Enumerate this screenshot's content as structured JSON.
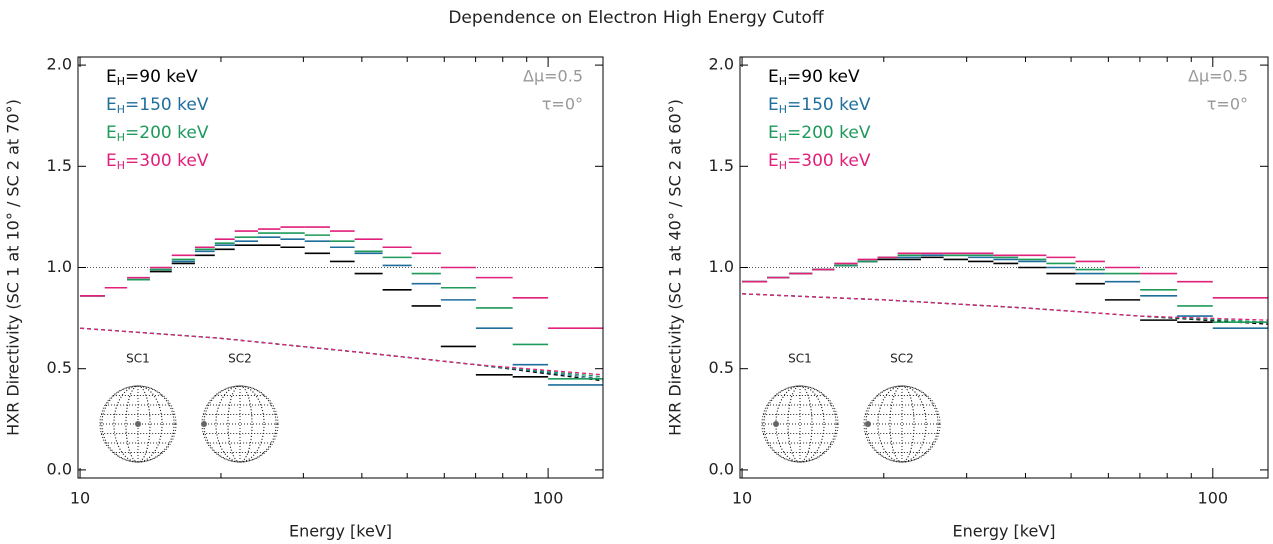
{
  "title": "Dependence on Electron High Energy Cutoff",
  "chart_data": [
    {
      "type": "histogram-step",
      "xlabel": "Energy [keV]",
      "ylabel": "HXR Directivity (SC 1 at 10° / SC 2 at 70°)",
      "log_x": true,
      "xlim": [
        9.9,
        131
      ],
      "ylim": [
        -0.04,
        2.04
      ],
      "xticks": [
        10,
        100
      ],
      "xminor": [
        20,
        30,
        40,
        50,
        60,
        70,
        80,
        90
      ],
      "yticks": [
        {
          "value": 0,
          "label": "0.0"
        },
        {
          "value": 0.5,
          "label": "0.5"
        },
        {
          "value": 1,
          "label": "1.0"
        },
        {
          "value": 1.5,
          "label": "1.5"
        },
        {
          "value": 2,
          "label": "2.0"
        }
      ],
      "reference_line": 1,
      "legend_base": "E",
      "legend_subscript": "H",
      "annotations": [
        "Δμ=0.5",
        "τ=0°",
        "SC1",
        "SC2"
      ],
      "bins": [
        10,
        11.3,
        12.6,
        14.1,
        15.7,
        17.6,
        19.4,
        21.4,
        24,
        26.8,
        30.2,
        34.2,
        38.6,
        44.3,
        51.1,
        59,
        70.1,
        84,
        100,
        131
      ],
      "series": [
        {
          "name": "=90 keV",
          "color": "#000000",
          "values": [
            0.86,
            0.9,
            0.94,
            0.98,
            1.02,
            1.06,
            1.09,
            1.11,
            1.11,
            1.1,
            1.07,
            1.03,
            0.97,
            0.89,
            0.81,
            0.61,
            0.47,
            0.46,
            null
          ]
        },
        {
          "name": "=150 keV",
          "color": "#1f6e9c",
          "values": [
            0.86,
            0.9,
            0.94,
            0.99,
            1.03,
            1.08,
            1.11,
            1.13,
            1.15,
            1.14,
            1.13,
            1.1,
            1.07,
            1.01,
            0.92,
            0.84,
            0.7,
            0.52,
            0.42
          ]
        },
        {
          "name": "=200 keV",
          "color": "#1e9a5a",
          "values": [
            0.86,
            0.9,
            0.94,
            0.99,
            1.04,
            1.09,
            1.12,
            1.15,
            1.17,
            1.17,
            1.16,
            1.13,
            1.08,
            1.05,
            0.97,
            0.9,
            0.8,
            0.62,
            0.45
          ]
        },
        {
          "name": "=300 keV",
          "color": "#e0207a",
          "values": [
            0.86,
            0.9,
            0.95,
            1.0,
            1.06,
            1.1,
            1.14,
            1.18,
            1.19,
            1.2,
            1.2,
            1.18,
            1.14,
            1.1,
            1.07,
            1.0,
            0.95,
            0.85,
            0.7
          ]
        }
      ],
      "model_x": [
        10,
        20,
        40,
        70,
        131
      ],
      "model_series": [
        {
          "color": "#000000",
          "values": [
            0.7,
            0.65,
            0.58,
            0.52,
            0.44
          ]
        },
        {
          "color": "#1f6e9c",
          "values": [
            0.7,
            0.65,
            0.58,
            0.52,
            0.45
          ]
        },
        {
          "color": "#1e9a5a",
          "values": [
            0.7,
            0.65,
            0.58,
            0.52,
            0.46
          ]
        },
        {
          "color": "#e0207a",
          "values": [
            0.7,
            0.65,
            0.58,
            0.52,
            0.47
          ]
        }
      ]
    },
    {
      "type": "histogram-step",
      "xlabel": "Energy [keV]",
      "ylabel": "HXR Directivity (SC 1 at 40° / SC 2 at 60°)",
      "log_x": true,
      "xlim": [
        9.9,
        131
      ],
      "ylim": [
        -0.04,
        2.04
      ],
      "xticks": [
        10,
        100
      ],
      "xminor": [
        20,
        30,
        40,
        50,
        60,
        70,
        80,
        90
      ],
      "yticks": [
        {
          "value": 0,
          "label": "0.0"
        },
        {
          "value": 0.5,
          "label": "0.5"
        },
        {
          "value": 1,
          "label": "1.0"
        },
        {
          "value": 1.5,
          "label": "1.5"
        },
        {
          "value": 2,
          "label": "2.0"
        }
      ],
      "reference_line": 1,
      "legend_base": "E",
      "legend_subscript": "H",
      "annotations": [
        "Δμ=0.5",
        "τ=0°",
        "SC1",
        "SC2"
      ],
      "bins": [
        10,
        11.3,
        12.6,
        14.1,
        15.7,
        17.6,
        19.4,
        21.4,
        24,
        26.8,
        30.2,
        34.2,
        38.6,
        44.3,
        51.1,
        59,
        70.1,
        84,
        100,
        131
      ],
      "series": [
        {
          "name": "=90 keV",
          "color": "#000000",
          "values": [
            0.93,
            0.95,
            0.97,
            0.99,
            1.01,
            1.03,
            1.04,
            1.04,
            1.05,
            1.04,
            1.03,
            1.02,
            1.0,
            0.97,
            0.92,
            0.84,
            0.74,
            0.73,
            null
          ]
        },
        {
          "name": "=150 keV",
          "color": "#1f6e9c",
          "values": [
            0.93,
            0.95,
            0.97,
            0.99,
            1.01,
            1.03,
            1.05,
            1.05,
            1.06,
            1.06,
            1.05,
            1.04,
            1.03,
            1.0,
            0.97,
            0.93,
            0.86,
            0.76,
            0.7
          ]
        },
        {
          "name": "=200 keV",
          "color": "#1e9a5a",
          "values": [
            0.93,
            0.95,
            0.97,
            0.99,
            1.01,
            1.03,
            1.05,
            1.06,
            1.07,
            1.06,
            1.06,
            1.05,
            1.04,
            1.02,
            0.99,
            0.97,
            0.89,
            0.81,
            0.73
          ]
        },
        {
          "name": "=300 keV",
          "color": "#e0207a",
          "values": [
            0.93,
            0.95,
            0.97,
            0.99,
            1.02,
            1.04,
            1.05,
            1.07,
            1.07,
            1.07,
            1.07,
            1.06,
            1.06,
            1.05,
            1.03,
            1.0,
            0.97,
            0.93,
            0.85
          ]
        }
      ],
      "model_x": [
        10,
        20,
        40,
        70,
        131
      ],
      "model_series": [
        {
          "color": "#000000",
          "values": [
            0.87,
            0.84,
            0.8,
            0.76,
            0.72
          ]
        },
        {
          "color": "#1f6e9c",
          "values": [
            0.87,
            0.84,
            0.8,
            0.76,
            0.73
          ]
        },
        {
          "color": "#1e9a5a",
          "values": [
            0.87,
            0.84,
            0.8,
            0.76,
            0.73
          ]
        },
        {
          "color": "#e0207a",
          "values": [
            0.87,
            0.84,
            0.8,
            0.76,
            0.74
          ]
        }
      ]
    }
  ]
}
